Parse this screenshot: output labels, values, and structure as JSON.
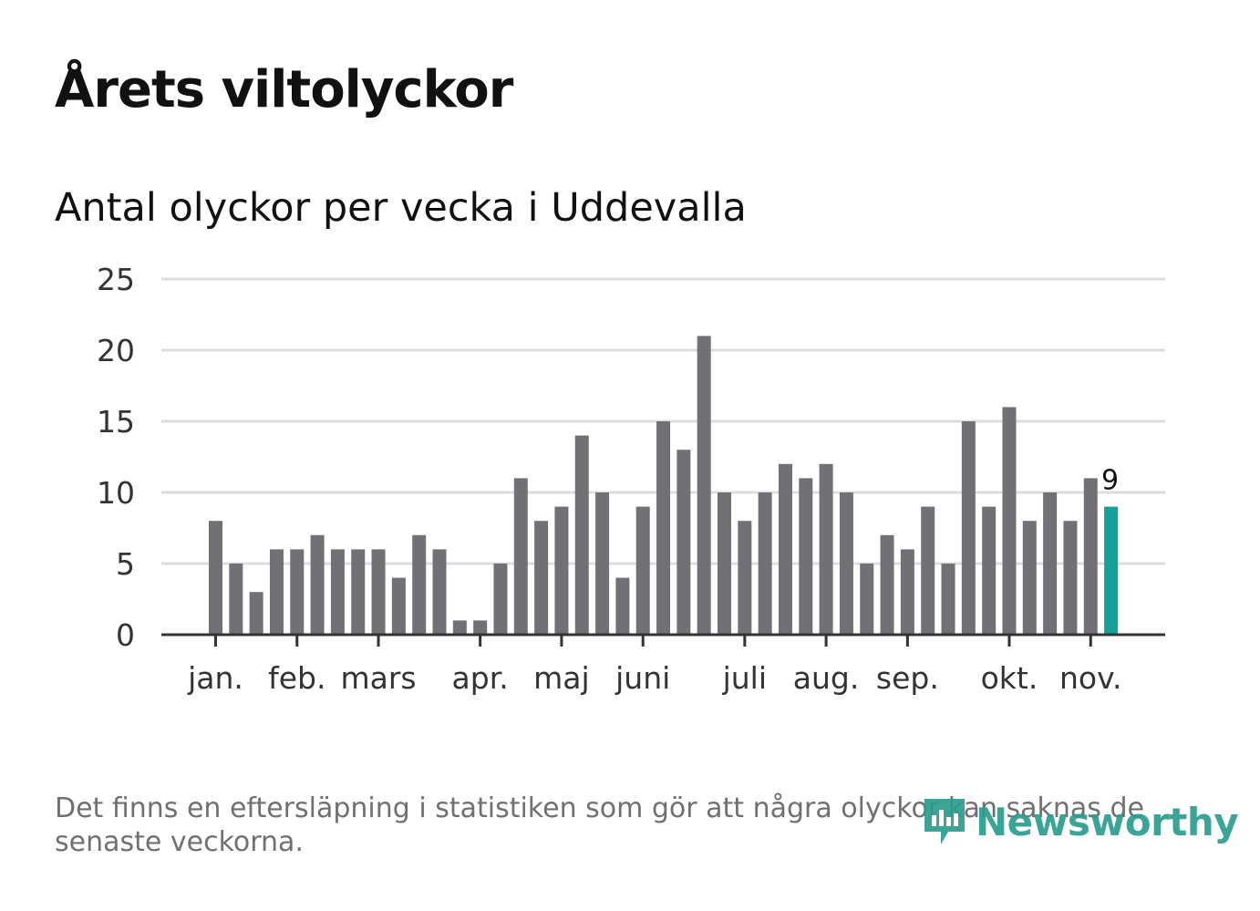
{
  "title": "Årets viltolyckor",
  "chart_data": {
    "type": "bar",
    "subtitle": "Antal olyckor per vecka i Uddevalla",
    "xlabel": "",
    "ylabel": "",
    "ylim": [
      0,
      25
    ],
    "yticks": [
      0,
      5,
      10,
      15,
      20,
      25
    ],
    "grid": true,
    "values": [
      8,
      5,
      3,
      6,
      6,
      7,
      6,
      6,
      6,
      4,
      7,
      6,
      1,
      1,
      5,
      11,
      8,
      9,
      14,
      10,
      4,
      9,
      15,
      13,
      21,
      10,
      8,
      10,
      12,
      11,
      12,
      10,
      5,
      7,
      6,
      9,
      5,
      15,
      9,
      16,
      8,
      10,
      8,
      11,
      9
    ],
    "month_labels": [
      {
        "label": "jan.",
        "bar": 0
      },
      {
        "label": "feb.",
        "bar": 4
      },
      {
        "label": "mars",
        "bar": 8
      },
      {
        "label": "apr.",
        "bar": 13
      },
      {
        "label": "maj",
        "bar": 17
      },
      {
        "label": "juni",
        "bar": 21
      },
      {
        "label": "juli",
        "bar": 26
      },
      {
        "label": "aug.",
        "bar": 30
      },
      {
        "label": "sep.",
        "bar": 34
      },
      {
        "label": "okt.",
        "bar": 39
      },
      {
        "label": "nov.",
        "bar": 43
      }
    ],
    "highlight_label": "9",
    "colors": {
      "bar": "#717075",
      "highlight": "#14a198",
      "grid": "#dddddd",
      "axis": "#333333",
      "text": "#333333"
    }
  },
  "footnote": "Det finns en eftersläpning i statistiken som gör att några olyckor kan saknas de senaste veckorna.",
  "logo": {
    "text": "Newsworthy",
    "icon": "newsworthy-logo-icon",
    "color": "#2a9d8f"
  }
}
